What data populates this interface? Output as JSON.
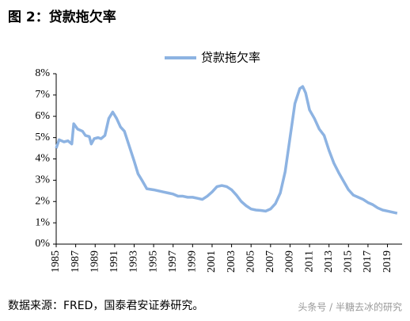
{
  "chart_data": {
    "type": "line",
    "title": "图 2：贷款拖欠率",
    "source": "数据来源：FRED，国泰君安证券研究。",
    "watermark": "头条号 / 半糖去冰的研究",
    "legend": "top",
    "series": [
      {
        "name": "贷款拖欠率",
        "color": "#8db3e2",
        "x": [
          1985.0,
          1985.3,
          1985.8,
          1986.2,
          1986.6,
          1986.8,
          1987.2,
          1987.7,
          1988.0,
          1988.4,
          1988.6,
          1988.9,
          1989.3,
          1989.6,
          1990.0,
          1990.4,
          1990.8,
          1991.2,
          1991.6,
          1992.0,
          1992.5,
          1993.0,
          1993.4,
          1993.8,
          1994.3,
          1995.0,
          1995.5,
          1996.0,
          1996.5,
          1997.0,
          1997.5,
          1998.0,
          1998.5,
          1999.0,
          1999.5,
          2000.0,
          2000.5,
          2001.0,
          2001.5,
          2002.0,
          2002.5,
          2003.0,
          2003.5,
          2004.0,
          2004.5,
          2005.0,
          2005.5,
          2006.0,
          2006.5,
          2007.0,
          2007.5,
          2008.0,
          2008.5,
          2009.0,
          2009.5,
          2010.0,
          2010.3,
          2010.6,
          2011.0,
          2011.5,
          2012.0,
          2012.5,
          2013.0,
          2013.5,
          2014.0,
          2014.5,
          2015.0,
          2015.5,
          2016.0,
          2016.5,
          2017.0,
          2017.5,
          2018.0,
          2018.5,
          2019.0,
          2019.5,
          2020.0
        ],
        "values": [
          4.5,
          4.9,
          4.8,
          4.85,
          4.7,
          5.65,
          5.4,
          5.3,
          5.1,
          5.05,
          4.7,
          4.95,
          5.0,
          4.95,
          5.1,
          5.9,
          6.2,
          5.9,
          5.5,
          5.3,
          4.6,
          3.9,
          3.3,
          3.0,
          2.6,
          2.55,
          2.5,
          2.45,
          2.4,
          2.35,
          2.25,
          2.25,
          2.2,
          2.2,
          2.15,
          2.1,
          2.25,
          2.45,
          2.7,
          2.75,
          2.7,
          2.55,
          2.3,
          2.0,
          1.8,
          1.65,
          1.6,
          1.58,
          1.55,
          1.65,
          1.9,
          2.4,
          3.4,
          5.0,
          6.6,
          7.3,
          7.4,
          7.1,
          6.3,
          5.9,
          5.4,
          5.1,
          4.4,
          3.8,
          3.35,
          2.95,
          2.55,
          2.3,
          2.2,
          2.1,
          1.95,
          1.85,
          1.7,
          1.6,
          1.55,
          1.5,
          1.45
        ]
      }
    ],
    "xlim": [
      1985,
      2020.5
    ],
    "xticks": [
      1985,
      1987,
      1989,
      1991,
      1993,
      1995,
      1997,
      1999,
      2001,
      2003,
      2005,
      2007,
      2009,
      2011,
      2013,
      2015,
      2017,
      2019
    ],
    "ylim": [
      0,
      8
    ],
    "yticks": [
      {
        "value": 0,
        "label": "0%"
      },
      {
        "value": 1,
        "label": "1%"
      },
      {
        "value": 2,
        "label": "2%"
      },
      {
        "value": 3,
        "label": "3%"
      },
      {
        "value": 4,
        "label": "4%"
      },
      {
        "value": 5,
        "label": "5%"
      },
      {
        "value": 6,
        "label": "6%"
      },
      {
        "value": 7,
        "label": "7%"
      },
      {
        "value": 8,
        "label": "8%"
      }
    ]
  }
}
